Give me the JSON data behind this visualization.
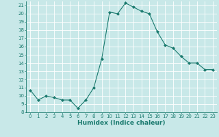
{
  "x": [
    0,
    1,
    2,
    3,
    4,
    5,
    6,
    7,
    8,
    9,
    10,
    11,
    12,
    13,
    14,
    15,
    16,
    17,
    18,
    19,
    20,
    21,
    22,
    23
  ],
  "y": [
    10.7,
    9.5,
    10.0,
    9.8,
    9.5,
    9.5,
    8.5,
    9.5,
    11.0,
    14.5,
    20.2,
    20.0,
    21.3,
    20.8,
    20.3,
    20.0,
    17.8,
    16.2,
    15.8,
    14.8,
    14.0,
    14.0,
    13.2,
    13.2
  ],
  "xlabel": "Humidex (Indice chaleur)",
  "ylim": [
    8,
    21.5
  ],
  "xlim": [
    -0.5,
    23.5
  ],
  "yticks": [
    8,
    9,
    10,
    11,
    12,
    13,
    14,
    15,
    16,
    17,
    18,
    19,
    20,
    21
  ],
  "xticks": [
    0,
    1,
    2,
    3,
    4,
    5,
    6,
    7,
    8,
    9,
    10,
    11,
    12,
    13,
    14,
    15,
    16,
    17,
    18,
    19,
    20,
    21,
    22,
    23
  ],
  "line_color": "#1a7a6e",
  "marker": "D",
  "marker_size": 2,
  "bg_color": "#c8e8e8",
  "grid_color": "#ffffff",
  "label_fontsize": 6,
  "tick_fontsize": 5,
  "xlabel_fontsize": 6.5
}
